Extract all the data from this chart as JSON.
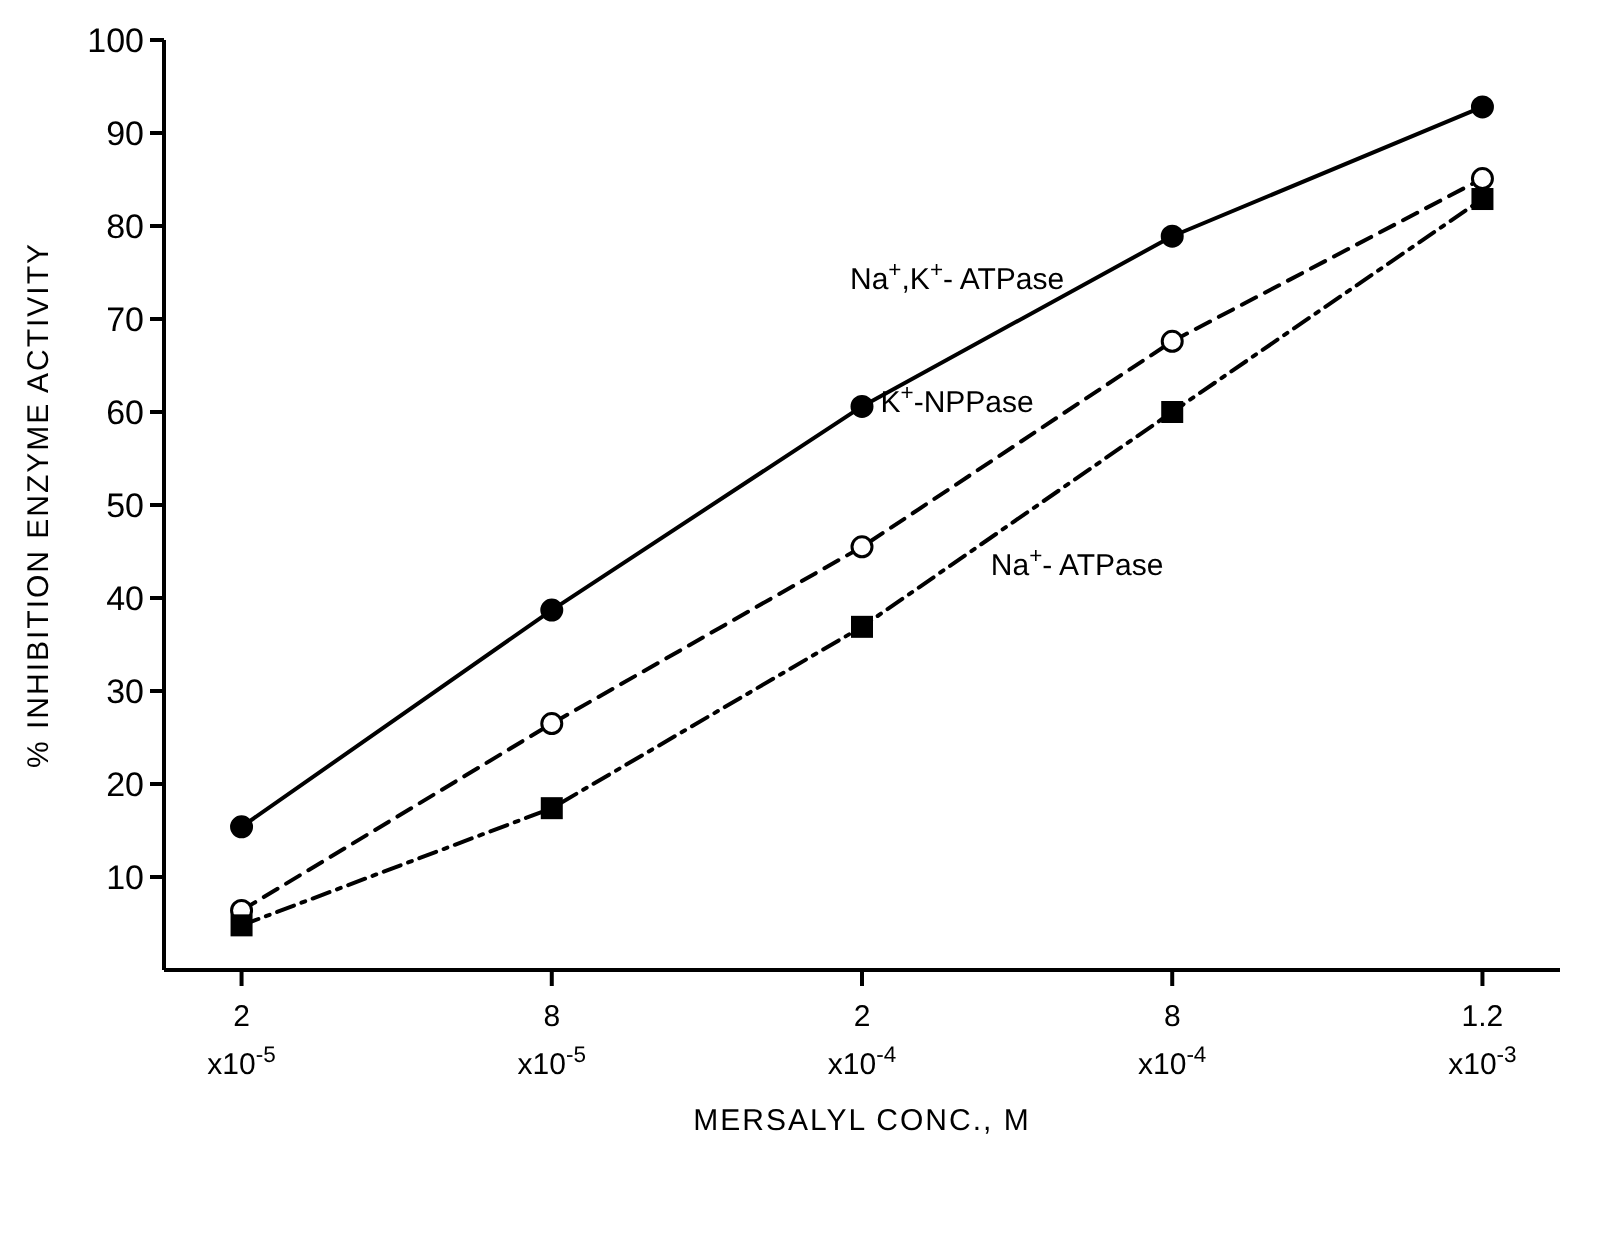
{
  "chart_data": {
    "type": "line",
    "xlabel": "MERSALYL CONC., M",
    "ylabel": "% INHIBITION ENZYME ACTIVITY",
    "categories": [
      "2 x10$^{-5}$",
      "8 x10$^{-5}$",
      "2 x10$^{-4}$",
      "8 x10$^{-4}$",
      "1.2 x10$^{-3}$"
    ],
    "ylim": [
      0,
      100
    ],
    "yticks": [
      10,
      20,
      30,
      40,
      50,
      60,
      70,
      80,
      90,
      100
    ],
    "grid": false,
    "series": [
      {
        "name": "Na$^{+}$,K$^{+}$- ATPase",
        "color": "#000000",
        "marker": "circle",
        "line_style": "solid",
        "values": [
          15.4,
          38.7,
          60.6,
          78.9,
          92.8
        ]
      },
      {
        "name": "K$^{+}$-NPPase",
        "color": "#000000",
        "marker": "circle-open",
        "line_style": "dashed",
        "values": [
          6.4,
          26.5,
          45.5,
          67.6,
          85.1
        ]
      },
      {
        "name": "Na$^{+}$- ATPase",
        "color": "#000000",
        "marker": "square",
        "line_style": "dashdot",
        "values": [
          4.8,
          17.4,
          36.9,
          60.0,
          82.9
        ]
      }
    ]
  }
}
